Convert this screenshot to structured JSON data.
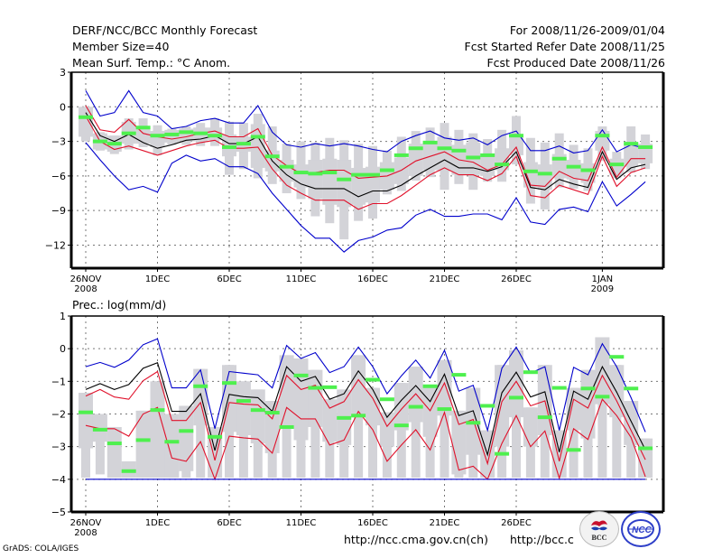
{
  "header": {
    "left": [
      "DERF/NCC/BCC Monthly Forecast",
      "Member Size=40",
      "Mean Surf. Temp.: °C Anom."
    ],
    "right": [
      "For 2008/11/26-2009/01/04",
      "Fcst Started Refer Date 2008/11/25",
      "Fcst Produced Date 2008/11/26"
    ]
  },
  "footer": {
    "grads": "GrADS: COLA/IGES",
    "url_ncc": "http://ncc.cma.gov.cn(ch)",
    "url_bcc": "http://bcc.c",
    "logo_bcc": "BCC",
    "logo_ncc": "NCC"
  },
  "colors": {
    "envelope": "#0000cc",
    "spread": "#e0102a",
    "mean": "#000000",
    "median": "#4ef04e",
    "box": "#d3d3d8"
  },
  "chart_data": [
    {
      "type": "line",
      "title": "Mean Surf. Temp.: °C Anom.",
      "xlabel": "",
      "ylabel": "°C Anom.",
      "ylim": [
        -14,
        3
      ],
      "yticks": [
        3,
        0,
        -3,
        -6,
        -9,
        -12
      ],
      "xtick_labels": [
        [
          "26NOV",
          "2008"
        ],
        [
          "1DEC",
          ""
        ],
        [
          "6DEC",
          ""
        ],
        [
          "11DEC",
          ""
        ],
        [
          "16DEC",
          ""
        ],
        [
          "21DEC",
          ""
        ],
        [
          "26DEC",
          ""
        ],
        [
          "1JAN",
          "2009"
        ]
      ],
      "xtick_days": [
        0,
        5,
        10,
        15,
        20,
        25,
        30,
        36
      ],
      "grid": true,
      "x_days": [
        0,
        1,
        2,
        3,
        4,
        5,
        6,
        7,
        8,
        9,
        10,
        11,
        12,
        13,
        14,
        15,
        16,
        17,
        18,
        19,
        20,
        21,
        22,
        23,
        24,
        25,
        26,
        27,
        28,
        29,
        30,
        31,
        32,
        33,
        34,
        35,
        36,
        37,
        38,
        39
      ],
      "series": [
        {
          "name": "max",
          "color": "#0000cc",
          "values": [
            1.4,
            -0.8,
            -0.5,
            1.4,
            -0.5,
            -0.8,
            -1.9,
            -1.7,
            -1.2,
            -1,
            -1.4,
            -1.4,
            0.1,
            -2.2,
            -3.3,
            -3.5,
            -3.2,
            -3.4,
            -3.2,
            -3.4,
            -3.7,
            -3.9,
            -3,
            -2.5,
            -2.1,
            -2.7,
            -2.9,
            -2.7,
            -3.3,
            -2.5,
            -2.1,
            -3.8,
            -3.8,
            -3.4,
            -4,
            -3.8,
            -2,
            -3.9,
            -3.3,
            -3.6
          ]
        },
        {
          "name": "spread_upper",
          "color": "#e0102a",
          "values": [
            0.1,
            -2,
            -2.2,
            -1.1,
            -2.3,
            -2.6,
            -2.8,
            -2.6,
            -2.3,
            -2.1,
            -2.6,
            -2.6,
            -1.9,
            -4.2,
            -5.1,
            -5.8,
            -5.7,
            -5.5,
            -5.5,
            -6.2,
            -6.1,
            -6,
            -5.5,
            -4.7,
            -4.3,
            -3.9,
            -4.6,
            -4.8,
            -5.5,
            -5,
            -3.5,
            -6.8,
            -6.9,
            -5.6,
            -6.2,
            -6.4,
            -3.5,
            -6.1,
            -4.5,
            -4.5
          ]
        },
        {
          "name": "mean",
          "color": "#000000",
          "values": [
            -0.5,
            -2.5,
            -3,
            -2.4,
            -3.1,
            -3.6,
            -3.3,
            -2.9,
            -2.8,
            -2.5,
            -3.2,
            -3.2,
            -2.6,
            -4.7,
            -5.9,
            -6.7,
            -7.1,
            -7.1,
            -7.1,
            -7.8,
            -7.3,
            -7.3,
            -6.8,
            -6,
            -5.3,
            -4.6,
            -5.3,
            -5.3,
            -5.6,
            -5.2,
            -3.9,
            -7,
            -7.2,
            -6.3,
            -6.7,
            -7,
            -3.9,
            -6.3,
            -5.3,
            -5
          ]
        },
        {
          "name": "spread_lower",
          "color": "#e0102a",
          "values": [
            -0.8,
            -3,
            -3.7,
            -3.4,
            -3.8,
            -4.2,
            -3.8,
            -3.4,
            -3.1,
            -2.9,
            -3.6,
            -3.6,
            -3.5,
            -5.4,
            -6.8,
            -7.5,
            -8.1,
            -8.1,
            -8.1,
            -8.9,
            -8.4,
            -8.4,
            -7.7,
            -6.8,
            -5.9,
            -5.3,
            -5.9,
            -5.9,
            -6.4,
            -5.8,
            -4.3,
            -7.7,
            -7.9,
            -6.8,
            -7.2,
            -7.6,
            -4.3,
            -6.9,
            -5.7,
            -5.3
          ]
        },
        {
          "name": "min",
          "color": "#0000cc",
          "values": [
            -3.1,
            -4.6,
            -6,
            -7.2,
            -6.9,
            -7.4,
            -4.9,
            -4.2,
            -4.7,
            -4.5,
            -5.2,
            -5.2,
            -5.8,
            -7.5,
            -8.9,
            -10.3,
            -11.4,
            -11.4,
            -12.6,
            -11.6,
            -11.3,
            -10.7,
            -10.5,
            -9.4,
            -8.9,
            -9.5,
            -9.5,
            -9.3,
            -9.3,
            -9.8,
            -7.9,
            -10,
            -10.2,
            -8.9,
            -8.7,
            -9.1,
            -6.5,
            -8.6,
            -7.6,
            -6.5
          ]
        }
      ],
      "boxes": {
        "whisker_low": [
          -3,
          -3.8,
          -4.1,
          -3.7,
          -3.5,
          -4.2,
          -3.3,
          -3.3,
          -3.4,
          -3.4,
          -5.9,
          -5.4,
          -6.2,
          -6.7,
          -7.5,
          -8,
          -9.5,
          -10.1,
          -11.5,
          -9.9,
          -9.7,
          -7.6,
          -7.3,
          -6.4,
          -6.1,
          -7.2,
          -6.7,
          -7.2,
          -6.5,
          -6.5,
          -5,
          -8.4,
          -8.9,
          -7,
          -7.1,
          -7.3,
          -4.7,
          -6.2,
          -5.7,
          -5.4
        ],
        "box_low": [
          -2.6,
          -3.7,
          -3.9,
          -3.2,
          -3.2,
          -3.5,
          -3.1,
          -3,
          -3,
          -2.9,
          -4.3,
          -3.9,
          -5.3,
          -5.6,
          -6.5,
          -7,
          -8,
          -8.5,
          -8.7,
          -8.5,
          -8.3,
          -7.2,
          -6.7,
          -6,
          -5.5,
          -5.6,
          -5.9,
          -5.9,
          -6,
          -5.5,
          -4.2,
          -7,
          -7.2,
          -6.2,
          -6.3,
          -6.6,
          -3.8,
          -5.9,
          -5.2,
          -4.9
        ],
        "box_high": [
          0,
          -2.3,
          -2.5,
          -1.3,
          -1.9,
          -2.1,
          -2,
          -1.9,
          -1.8,
          -1.8,
          -2.4,
          -2.6,
          -1.5,
          -3.8,
          -4.6,
          -5,
          -4.6,
          -4.5,
          -4.6,
          -5.3,
          -5.2,
          -4.8,
          -4.4,
          -3.2,
          -3,
          -2.6,
          -3.3,
          -3.1,
          -4.1,
          -3.6,
          -2.4,
          -4.8,
          -5,
          -4.1,
          -4.6,
          -4.9,
          -2.1,
          -4.5,
          -3.3,
          -3.2
        ],
        "whisker_high": [
          0,
          -2.2,
          -2.5,
          -1,
          -1,
          -1.6,
          -1.9,
          -1.7,
          -1.4,
          -1,
          -1.3,
          -1.4,
          -0.6,
          -1.7,
          -3.2,
          -3,
          -3.1,
          -2.7,
          -2.9,
          -3.2,
          -3.4,
          -3.8,
          -2.6,
          -2.1,
          -1.8,
          -1.4,
          -2,
          -2.3,
          -2.8,
          -2,
          -0.8,
          -2.7,
          -3.1,
          -2.3,
          -3.3,
          -3.6,
          -1.7,
          -3.9,
          -1.7,
          -2.4
        ],
        "median": [
          -0.9,
          -3,
          -3.2,
          -2.3,
          -1.8,
          -2.5,
          -2.4,
          -2.2,
          -2.3,
          -2.5,
          -3.5,
          -3.2,
          -2.6,
          -4.3,
          -5.2,
          -5.7,
          -5.8,
          -5.7,
          -6.3,
          -5.9,
          -5.9,
          -5.5,
          -4.2,
          -3.6,
          -3.1,
          -3.6,
          -3.8,
          -4.4,
          -4.2,
          -5,
          -2.5,
          -5.6,
          -5.8,
          -4.5,
          -5.2,
          -5.5,
          -2.5,
          -5,
          -3.2,
          -3.5
        ]
      }
    },
    {
      "type": "line",
      "title": "Prec.: log(mm/d)",
      "xlabel": "",
      "ylabel": "log(mm/d)",
      "ylim": [
        -5,
        1
      ],
      "yticks": [
        1,
        0,
        -1,
        -2,
        -3,
        -4,
        -5
      ],
      "xtick_labels": [
        [
          "26NOV",
          "2008"
        ],
        [
          "1DEC",
          ""
        ],
        [
          "6DEC",
          ""
        ],
        [
          "11DEC",
          ""
        ],
        [
          "16DEC",
          ""
        ],
        [
          "21DEC",
          ""
        ],
        [
          "26DEC",
          ""
        ]
      ],
      "xtick_days": [
        0,
        5,
        10,
        15,
        20,
        25,
        30
      ],
      "grid": true,
      "x_days": [
        0,
        1,
        2,
        3,
        4,
        5,
        6,
        7,
        8,
        9,
        10,
        11,
        12,
        13,
        14,
        15,
        16,
        17,
        18,
        19,
        20,
        21,
        22,
        23,
        24,
        25,
        26,
        27,
        28,
        29,
        30,
        31,
        32,
        33,
        34,
        35,
        36,
        37,
        38,
        39
      ],
      "series": [
        {
          "name": "max",
          "color": "#0000cc",
          "values": [
            -0.55,
            -0.42,
            -0.57,
            -0.35,
            0.12,
            0.3,
            -1.2,
            -1.2,
            -0.65,
            -2.45,
            -0.7,
            -0.75,
            -0.8,
            -1.2,
            0.1,
            -0.3,
            -0.12,
            -0.73,
            -0.55,
            0.05,
            -0.55,
            -1.38,
            -0.83,
            -0.35,
            -0.9,
            -0.05,
            -1.3,
            -1.12,
            -2.5,
            -0.6,
            0.05,
            -0.75,
            -0.55,
            -2.5,
            -0.57,
            -0.8,
            0.15,
            -0.55,
            -1.5,
            -2.55
          ]
        },
        {
          "name": "spread_upper",
          "color": "#000000",
          "values": [
            -1.25,
            -1.07,
            -1.25,
            -1.1,
            -0.6,
            -0.43,
            -1.92,
            -1.92,
            -1.38,
            -3.12,
            -1.4,
            -1.47,
            -1.5,
            -1.92,
            -0.55,
            -1.0,
            -0.85,
            -1.55,
            -1.38,
            -0.68,
            -1.25,
            -2.1,
            -1.58,
            -1.13,
            -1.62,
            -0.78,
            -2.05,
            -1.9,
            -3.25,
            -1.35,
            -0.72,
            -1.48,
            -1.32,
            -3.17,
            -1.3,
            -1.55,
            -0.55,
            -1.33,
            -2.22,
            -3.1
          ]
        },
        {
          "name": "spread_lower",
          "color": "#e0102a",
          "values": [
            -1.45,
            -1.25,
            -1.48,
            -1.55,
            -0.98,
            -0.7,
            -2.2,
            -2.2,
            -1.65,
            -3.42,
            -1.65,
            -1.7,
            -1.72,
            -2.15,
            -0.82,
            -1.25,
            -1.12,
            -1.82,
            -1.62,
            -0.95,
            -1.52,
            -2.38,
            -1.85,
            -1.38,
            -1.9,
            -1.05,
            -2.32,
            -2.17,
            -3.52,
            -1.62,
            -1.0,
            -1.75,
            -1.6,
            -3.45,
            -1.55,
            -1.82,
            -0.82,
            -1.6,
            -2.5,
            -3.4
          ]
        },
        {
          "name": "mean_lower",
          "color": "#e0102a",
          "values": [
            -2.35,
            -2.45,
            -2.45,
            -2.68,
            -2.0,
            -1.8,
            -3.35,
            -3.45,
            -2.85,
            -4.0,
            -2.68,
            -2.73,
            -2.77,
            -3.2,
            -1.8,
            -2.15,
            -2.15,
            -2.95,
            -2.8,
            -1.92,
            -2.48,
            -3.45,
            -2.95,
            -2.48,
            -3.1,
            -1.95,
            -3.72,
            -3.6,
            -4.0,
            -2.9,
            -2.05,
            -3.0,
            -2.52,
            -3.97,
            -2.45,
            -2.78,
            -1.55,
            -2.05,
            -2.72,
            -3.92
          ]
        },
        {
          "name": "floor",
          "color": "#0000cc",
          "values": [
            -4,
            -4,
            -4,
            -4,
            -4,
            -4,
            -4,
            -4,
            -4,
            -4,
            -4,
            -4,
            -4,
            -4,
            -4,
            -4,
            -4,
            -4,
            -4,
            -4,
            -4,
            -4,
            -4,
            -4,
            -4,
            -4,
            -4,
            -4,
            -4,
            -4,
            -4,
            -4,
            -4,
            -4,
            -4,
            -4,
            -4,
            -4,
            -4,
            -4
          ]
        }
      ],
      "boxes": {
        "whisker_low": [
          -3.95,
          -3.85,
          -3.95,
          -3.95,
          -3.95,
          -3.95,
          -3.95,
          -3.95,
          -3.95,
          -3.95,
          -3.95,
          -3.95,
          -3.95,
          -3.95,
          -3.95,
          -3.95,
          -3.95,
          -3.95,
          -3.95,
          -3.95,
          -3.95,
          -3.95,
          -3.95,
          -3.95,
          -3.95,
          -3.95,
          -3.95,
          -3.95,
          -3.95,
          -3.95,
          -3.95,
          -3.95,
          -3.95,
          -3.95,
          -3.95,
          -3.95,
          -3.95,
          -3.95,
          -3.95,
          -3.95
        ],
        "box_low": [
          -3.05,
          -2.85,
          -3.95,
          -3.95,
          -3.95,
          -3.95,
          -3.95,
          -3.75,
          -2.35,
          -3.95,
          -2.55,
          -2.65,
          -2.9,
          -3.2,
          -2.45,
          -2.8,
          -2.4,
          -2.85,
          -2.95,
          -2.0,
          -2.35,
          -3.0,
          -2.5,
          -2.25,
          -2.7,
          -2.05,
          -3.85,
          -3.25,
          -3.95,
          -3.0,
          -2.1,
          -3.0,
          -2.65,
          -3.95,
          -2.5,
          -2.75,
          -1.7,
          -2.1,
          -2.95,
          -3.95
        ],
        "box_high": [
          -1.35,
          -2.0,
          -2.4,
          -3.45,
          -1.9,
          -1.0,
          -2.0,
          -1.75,
          -0.62,
          -2.4,
          -0.5,
          -1.0,
          -1.25,
          -1.6,
          -0.2,
          -0.3,
          -0.65,
          -1.55,
          -1.25,
          -0.2,
          -1.2,
          -1.95,
          -1.05,
          -0.55,
          -1.2,
          -0.35,
          -1.9,
          -1.2,
          -2.5,
          -0.5,
          -0.05,
          -1.8,
          -0.5,
          -2.5,
          -1.2,
          -0.65,
          0.35,
          -0.5,
          -1.6,
          -2.75
        ],
        "median": [
          -1.95,
          -2.48,
          -2.9,
          -3.75,
          -2.8,
          -1.88,
          -2.85,
          -2.52,
          -1.15,
          -2.7,
          -1.05,
          -1.6,
          -1.88,
          -1.96,
          -2.4,
          -0.82,
          -1.2,
          -1.18,
          -2.12,
          -2.05,
          -0.95,
          -1.55,
          -2.35,
          -1.78,
          -1.15,
          -1.85,
          -0.8,
          -2.27,
          -1.75,
          -3.22,
          -1.5,
          -0.72,
          -2.1,
          -1.2,
          -3.1,
          -1.22,
          -1.47,
          -0.25,
          -1.22,
          -3.05
        ]
      }
    }
  ]
}
